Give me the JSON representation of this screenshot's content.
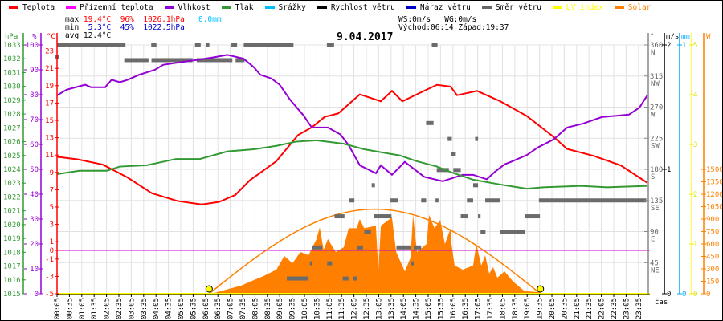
{
  "legend": [
    {
      "label": "Teplota",
      "color": "#ff0000"
    },
    {
      "label": "Přízemní teplota",
      "color": "#ff00ff"
    },
    {
      "label": "Vlhkost",
      "color": "#9400d3"
    },
    {
      "label": "Tlak",
      "color": "#339933"
    },
    {
      "label": "Srážky",
      "color": "#00bfff"
    },
    {
      "label": "Rychlost větru",
      "color": "#000000"
    },
    {
      "label": "Náraz větru",
      "color": "#0000cc"
    },
    {
      "label": "Směr větru",
      "color": "#666666"
    },
    {
      "label": "UV index",
      "color": "#ffff00"
    },
    {
      "label": "Solar",
      "color": "#ff8000"
    }
  ],
  "stats": {
    "max_label": "max",
    "max_temp": "19.4°C",
    "max_hum": "96%",
    "max_press": "1026.1hPa",
    "max_rain": "0.0mm",
    "min_label": "min",
    "min_temp": "5.3°C",
    "min_hum": "45%",
    "min_press": "1022.5hPa",
    "avg_label": "avg",
    "avg_temp": "12.4°C",
    "ws": "WS:0m/s",
    "wg": "WG:0m/s",
    "sunrise": "Východ:06:14",
    "sunset": "Západ:19:37"
  },
  "title": "9.04.2017",
  "chart_data": {
    "type": "line",
    "title": "9.04.2017",
    "xlabel": "čas",
    "x_ticks": [
      "00:05",
      "00:35",
      "01:05",
      "01:35",
      "02:05",
      "02:35",
      "03:05",
      "03:35",
      "04:05",
      "04:35",
      "05:05",
      "05:35",
      "06:05",
      "06:35",
      "07:05",
      "07:35",
      "08:05",
      "08:35",
      "09:05",
      "09:35",
      "10:05",
      "10:35",
      "11:05",
      "11:35",
      "12:05",
      "12:35",
      "13:05",
      "13:35",
      "14:05",
      "14:35",
      "15:05",
      "15:35",
      "16:05",
      "16:35",
      "17:05",
      "17:35",
      "18:05",
      "18:35",
      "19:05",
      "19:35",
      "20:05",
      "20:35",
      "21:05",
      "21:35",
      "22:05",
      "22:35",
      "23:05",
      "23:35"
    ],
    "axes": {
      "pressure": {
        "unit": "hPa",
        "range": [
          1015,
          1033
        ],
        "ticks": [
          1015,
          1016,
          1017,
          1018,
          1019,
          1020,
          1021,
          1022,
          1023,
          1024,
          1025,
          1026,
          1027,
          1028,
          1029,
          1030,
          1031,
          1032,
          1033
        ]
      },
      "humidity": {
        "unit": "%",
        "range": [
          0,
          100
        ],
        "ticks": [
          0,
          10,
          20,
          30,
          40,
          50,
          60,
          70,
          80,
          90,
          100
        ]
      },
      "temperature": {
        "unit": "°C",
        "range": [
          -5,
          23.8
        ],
        "ticks": [
          -5,
          -3,
          -1,
          0,
          1,
          3,
          5,
          7,
          9,
          11,
          13,
          15,
          17,
          19,
          21,
          23
        ]
      },
      "direction": {
        "unit": "°",
        "range": [
          0,
          360
        ],
        "ticks": [
          {
            "v": 45,
            "l": "NE"
          },
          {
            "v": 90,
            "l": "E"
          },
          {
            "v": 135,
            "l": "SE"
          },
          {
            "v": 180,
            "l": "S"
          },
          {
            "v": 225,
            "l": "SW"
          },
          {
            "v": 270,
            "l": "W"
          },
          {
            "v": 315,
            "l": "NW"
          },
          {
            "v": 360,
            "l": "N"
          }
        ]
      },
      "wind": {
        "unit": "m/s",
        "range": [
          0,
          2
        ],
        "ticks": [
          0,
          1,
          2
        ]
      },
      "rain": {
        "unit": "mm",
        "range": [
          0,
          1
        ],
        "ticks": [
          0,
          1
        ]
      },
      "uv": {
        "unit": "",
        "range": [
          0,
          5
        ],
        "ticks": [
          0,
          1,
          2,
          3,
          4,
          5
        ]
      },
      "solar": {
        "unit": "W",
        "range": [
          0,
          1500
        ],
        "ticks": [
          0,
          150,
          300,
          450,
          600,
          750,
          900,
          1050,
          1200,
          1350,
          1500
        ]
      }
    },
    "series": [
      {
        "name": "Teplota",
        "axis": "temperature",
        "color": "#ff0000",
        "points": [
          [
            0.08,
            10.8
          ],
          [
            0.93,
            10.5
          ],
          [
            1.93,
            9.9
          ],
          [
            2.94,
            8.4
          ],
          [
            3.91,
            6.6
          ],
          [
            4.95,
            5.7
          ],
          [
            5.93,
            5.3
          ],
          [
            6.64,
            5.6
          ],
          [
            7.29,
            6.4
          ],
          [
            7.88,
            8.1
          ],
          [
            8.95,
            10.3
          ],
          [
            9.82,
            13.3
          ],
          [
            10.38,
            14.2
          ],
          [
            10.9,
            15.4
          ],
          [
            11.45,
            15.8
          ],
          [
            12.32,
            18.0
          ],
          [
            13.17,
            17.2
          ],
          [
            13.62,
            18.4
          ],
          [
            14.04,
            17.2
          ],
          [
            14.92,
            18.4
          ],
          [
            15.44,
            19.1
          ],
          [
            15.99,
            18.9
          ],
          [
            16.25,
            17.9
          ],
          [
            17.06,
            18.4
          ],
          [
            18.0,
            17.2
          ],
          [
            19.07,
            15.5
          ],
          [
            20.15,
            13.1
          ],
          [
            20.7,
            11.7
          ],
          [
            21.78,
            10.9
          ],
          [
            22.87,
            9.8
          ],
          [
            23.94,
            7.8
          ]
        ]
      },
      {
        "name": "Přízemní teplota",
        "axis": "temperature",
        "color": "#ff00ff",
        "points": [
          [
            0.08,
            0
          ],
          [
            23.94,
            0
          ]
        ]
      },
      {
        "name": "Vlhkost",
        "axis": "humidity",
        "color": "#9400d3",
        "points": [
          [
            0.08,
            79.7
          ],
          [
            0.47,
            82
          ],
          [
            1.22,
            84
          ],
          [
            1.45,
            83
          ],
          [
            2.03,
            83
          ],
          [
            2.29,
            86
          ],
          [
            2.62,
            85
          ],
          [
            2.94,
            86
          ],
          [
            3.4,
            88
          ],
          [
            4.04,
            90
          ],
          [
            4.37,
            92
          ],
          [
            5.02,
            93
          ],
          [
            5.76,
            94
          ],
          [
            6.4,
            95
          ],
          [
            6.97,
            96
          ],
          [
            7.62,
            94.5
          ],
          [
            8.04,
            91
          ],
          [
            8.3,
            88
          ],
          [
            8.75,
            86.5
          ],
          [
            9.08,
            84
          ],
          [
            9.5,
            78
          ],
          [
            10.05,
            71.6
          ],
          [
            10.38,
            66.8
          ],
          [
            11.03,
            66.8
          ],
          [
            11.54,
            64
          ],
          [
            11.87,
            59.7
          ],
          [
            12.32,
            51.6
          ],
          [
            12.97,
            48.4
          ],
          [
            13.17,
            51.6
          ],
          [
            13.62,
            47.8
          ],
          [
            14.14,
            53
          ],
          [
            14.92,
            47
          ],
          [
            15.67,
            45.2
          ],
          [
            16.48,
            47.8
          ],
          [
            16.9,
            47.8
          ],
          [
            17.45,
            46
          ],
          [
            17.78,
            49
          ],
          [
            18.17,
            52
          ],
          [
            18.43,
            53
          ],
          [
            19.08,
            55.8
          ],
          [
            19.5,
            58.7
          ],
          [
            20.15,
            62
          ],
          [
            20.7,
            66.8
          ],
          [
            21.35,
            68.4
          ],
          [
            22.1,
            71
          ],
          [
            23.2,
            72
          ],
          [
            23.62,
            74.8
          ],
          [
            23.94,
            79.7
          ]
        ]
      },
      {
        "name": "Tlak",
        "axis": "pressure",
        "color": "#339933",
        "points": [
          [
            0.08,
            1023.65
          ],
          [
            0.99,
            1023.9
          ],
          [
            2.1,
            1023.9
          ],
          [
            2.62,
            1024.2
          ],
          [
            3.72,
            1024.3
          ],
          [
            4.89,
            1024.75
          ],
          [
            5.86,
            1024.75
          ],
          [
            6.97,
            1025.3
          ],
          [
            8.04,
            1025.45
          ],
          [
            8.95,
            1025.7
          ],
          [
            9.73,
            1026.0
          ],
          [
            10.57,
            1026.1
          ],
          [
            11.67,
            1025.85
          ],
          [
            12.5,
            1025.45
          ],
          [
            13.3,
            1025.2
          ],
          [
            13.95,
            1025.0
          ],
          [
            14.6,
            1024.6
          ],
          [
            15.44,
            1024.2
          ],
          [
            15.99,
            1023.8
          ],
          [
            16.9,
            1023.25
          ],
          [
            18.0,
            1022.9
          ],
          [
            19.07,
            1022.6
          ],
          [
            19.73,
            1022.7
          ],
          [
            21.25,
            1022.8
          ],
          [
            22.32,
            1022.7
          ],
          [
            23.94,
            1022.8
          ]
        ]
      },
      {
        "name": "Rychlost větru",
        "axis": "wind",
        "color": "#000000",
        "points": [
          [
            0.08,
            0
          ],
          [
            23.94,
            0
          ]
        ]
      },
      {
        "name": "UV index",
        "axis": "uv",
        "color": "#ffff00",
        "points": [
          [
            0.08,
            0
          ],
          [
            23.94,
            0
          ]
        ]
      },
      {
        "name": "Solar",
        "axis": "solar",
        "color": "#ff8000",
        "type": "area",
        "points": [
          [
            6.32,
            0
          ],
          [
            7.06,
            60
          ],
          [
            7.55,
            100
          ],
          [
            7.88,
            145
          ],
          [
            8.43,
            213
          ],
          [
            8.95,
            290
          ],
          [
            9.27,
            455
          ],
          [
            9.6,
            368
          ],
          [
            9.92,
            503
          ],
          [
            10.25,
            465
          ],
          [
            10.57,
            660
          ],
          [
            10.7,
            800
          ],
          [
            10.86,
            530
          ],
          [
            11.03,
            660
          ],
          [
            11.35,
            503
          ],
          [
            11.67,
            560
          ],
          [
            11.87,
            790
          ],
          [
            12.19,
            790
          ],
          [
            12.32,
            900
          ],
          [
            12.5,
            790
          ],
          [
            12.97,
            820
          ],
          [
            13.07,
            270
          ],
          [
            13.17,
            820
          ],
          [
            13.62,
            920
          ],
          [
            13.79,
            503
          ],
          [
            14.14,
            270
          ],
          [
            14.37,
            435
          ],
          [
            14.47,
            950
          ],
          [
            14.63,
            503
          ],
          [
            15.02,
            600
          ],
          [
            15.12,
            950
          ],
          [
            15.34,
            790
          ],
          [
            15.57,
            890
          ],
          [
            15.76,
            600
          ],
          [
            15.99,
            790
          ],
          [
            16.0,
            660
          ],
          [
            16.15,
            340
          ],
          [
            16.48,
            290
          ],
          [
            16.9,
            340
          ],
          [
            17.03,
            600
          ],
          [
            17.23,
            340
          ],
          [
            17.39,
            465
          ],
          [
            17.55,
            242
          ],
          [
            17.71,
            320
          ],
          [
            17.88,
            194
          ],
          [
            18.17,
            270
          ],
          [
            18.52,
            145
          ],
          [
            18.98,
            30
          ],
          [
            19.5,
            20
          ],
          [
            19.62,
            0
          ]
        ]
      },
      {
        "name": "Solar teoretický",
        "axis": "solar",
        "color": "#ff8000",
        "type": "curve",
        "sunrise": 6.23,
        "sunset": 19.62,
        "peak": 1020
      }
    ],
    "wind_direction_segments": [
      [
        0.08,
        2.85,
        360
      ],
      [
        3.89,
        4.1,
        360
      ],
      [
        5.66,
        5.89,
        360
      ],
      [
        6.1,
        6.24,
        360
      ],
      [
        7.13,
        7.36,
        360
      ],
      [
        7.63,
        9.64,
        360
      ],
      [
        10.99,
        11.28,
        360
      ],
      [
        15.23,
        15.46,
        360
      ],
      [
        2.8,
        3.78,
        338
      ],
      [
        3.9,
        5.56,
        338
      ],
      [
        5.73,
        7.17,
        338
      ],
      [
        7.3,
        7.66,
        338
      ],
      [
        0.0,
        0.15,
        342
      ],
      [
        15.0,
        15.3,
        247
      ],
      [
        15.87,
        16.04,
        224
      ],
      [
        16.98,
        17.1,
        224
      ],
      [
        16.0,
        16.2,
        202
      ],
      [
        15.43,
        15.92,
        179
      ],
      [
        16.1,
        16.4,
        179
      ],
      [
        12.8,
        12.93,
        157
      ],
      [
        16.9,
        17.1,
        157
      ],
      [
        11.88,
        12.1,
        135
      ],
      [
        13.56,
        13.86,
        135
      ],
      [
        14.8,
        15.0,
        135
      ],
      [
        15.38,
        15.5,
        135
      ],
      [
        16.65,
        16.9,
        135
      ],
      [
        17.39,
        18.0,
        135
      ],
      [
        19.56,
        23.9,
        135
      ],
      [
        11.3,
        11.7,
        112
      ],
      [
        12.9,
        13.6,
        112
      ],
      [
        16.4,
        16.7,
        112
      ],
      [
        17.1,
        17.2,
        112
      ],
      [
        19.0,
        19.6,
        112
      ],
      [
        12.5,
        12.77,
        90
      ],
      [
        17.2,
        17.4,
        90
      ],
      [
        18.0,
        19.0,
        90
      ],
      [
        10.4,
        10.8,
        67
      ],
      [
        12.2,
        12.45,
        67
      ],
      [
        13.8,
        14.4,
        67
      ],
      [
        14.5,
        14.8,
        67
      ],
      [
        10.3,
        10.4,
        44
      ],
      [
        11.0,
        11.2,
        44
      ],
      [
        14.4,
        14.5,
        44
      ],
      [
        9.37,
        10.25,
        22
      ],
      [
        11.63,
        11.86,
        22
      ],
      [
        12.05,
        12.2,
        22
      ]
    ],
    "sun_markers": [
      6.23,
      19.62
    ],
    "grid": true
  }
}
